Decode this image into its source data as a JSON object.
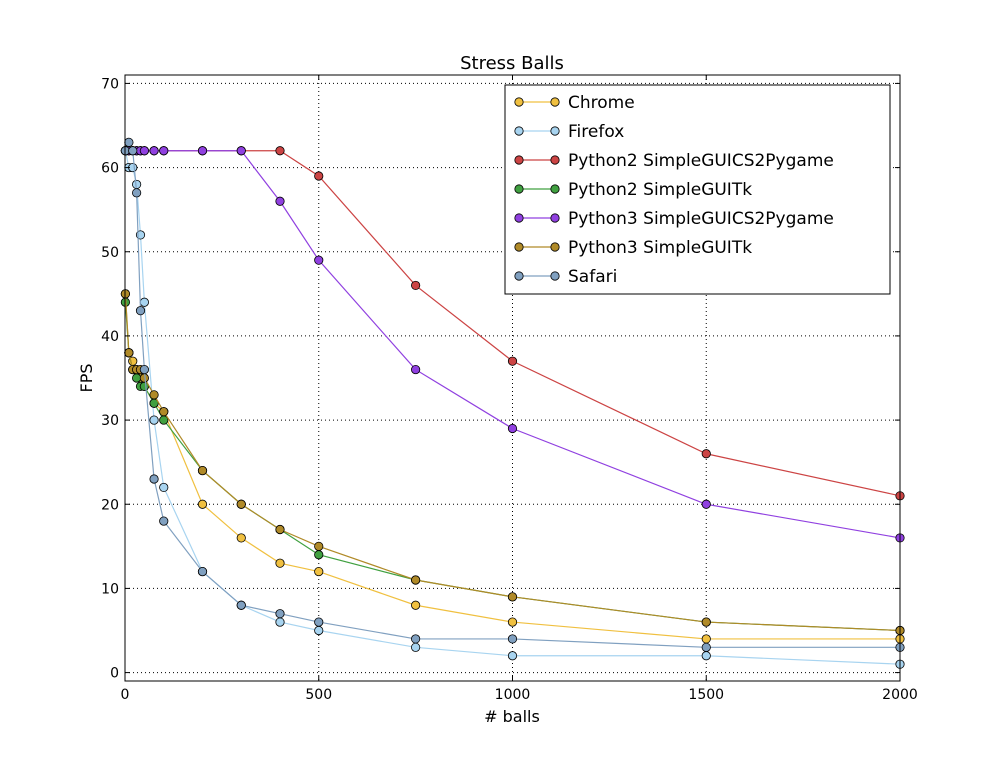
{
  "chart_data": {
    "type": "line",
    "title": "Stress Balls",
    "xlabel": "# balls",
    "ylabel": "FPS",
    "xlim": [
      0,
      2000
    ],
    "ylim": [
      -1,
      71
    ],
    "xticks": [
      0,
      500,
      1000,
      1500,
      2000
    ],
    "yticks": [
      0,
      10,
      20,
      30,
      40,
      50,
      60,
      70
    ],
    "grid": true,
    "legend_position": "top-right",
    "series": [
      {
        "name": "Chrome",
        "color": "#f0c040",
        "x": [
          1,
          10,
          20,
          30,
          40,
          50,
          75,
          100,
          200,
          300,
          400,
          500,
          750,
          1000,
          1500,
          2000
        ],
        "y": [
          45,
          38,
          37,
          36,
          35,
          34,
          32,
          31,
          20,
          16,
          13,
          12,
          8,
          6,
          4,
          4
        ]
      },
      {
        "name": "Firefox",
        "color": "#a8d4f0",
        "x": [
          1,
          10,
          20,
          30,
          40,
          50,
          75,
          100,
          200,
          300,
          400,
          500,
          750,
          1000,
          1500,
          2000
        ],
        "y": [
          62,
          60,
          60,
          58,
          52,
          44,
          30,
          22,
          12,
          8,
          6,
          5,
          3,
          2,
          2,
          1
        ]
      },
      {
        "name": "Python2 SimpleGUICS2Pygame",
        "color": "#cc4444",
        "x": [
          1,
          10,
          20,
          30,
          40,
          50,
          75,
          100,
          200,
          300,
          400,
          500,
          750,
          1000,
          1500,
          2000
        ],
        "y": [
          62,
          62,
          62,
          62,
          62,
          62,
          62,
          62,
          62,
          62,
          62,
          59,
          46,
          37,
          26,
          21
        ]
      },
      {
        "name": "Python2 SimpleGUITk",
        "color": "#40a040",
        "x": [
          1,
          10,
          20,
          30,
          40,
          50,
          75,
          100,
          200,
          300,
          400,
          500,
          750,
          1000,
          1500,
          2000
        ],
        "y": [
          44,
          38,
          36,
          35,
          34,
          34,
          32,
          30,
          24,
          20,
          17,
          14,
          11,
          9,
          6,
          5
        ]
      },
      {
        "name": "Python3 SimpleGUICS2Pygame",
        "color": "#9040e0",
        "x": [
          1,
          10,
          20,
          30,
          40,
          50,
          75,
          100,
          200,
          300,
          400,
          500,
          750,
          1000,
          1500,
          2000
        ],
        "y": [
          62,
          62,
          62,
          62,
          62,
          62,
          62,
          62,
          62,
          62,
          56,
          49,
          36,
          29,
          20,
          16
        ]
      },
      {
        "name": "Python3 SimpleGUITk",
        "color": "#b08a28",
        "x": [
          1,
          10,
          20,
          30,
          40,
          50,
          75,
          100,
          200,
          300,
          400,
          500,
          750,
          1000,
          1500,
          2000
        ],
        "y": [
          45,
          38,
          36,
          36,
          36,
          35,
          33,
          31,
          24,
          20,
          17,
          15,
          11,
          9,
          6,
          5
        ]
      },
      {
        "name": "Safari",
        "color": "#80a0c0",
        "x": [
          1,
          10,
          20,
          30,
          40,
          50,
          75,
          100,
          200,
          300,
          400,
          500,
          750,
          1000,
          1500,
          2000
        ],
        "y": [
          62,
          63,
          62,
          57,
          43,
          36,
          23,
          18,
          12,
          8,
          7,
          6,
          4,
          4,
          3,
          3
        ]
      }
    ]
  }
}
